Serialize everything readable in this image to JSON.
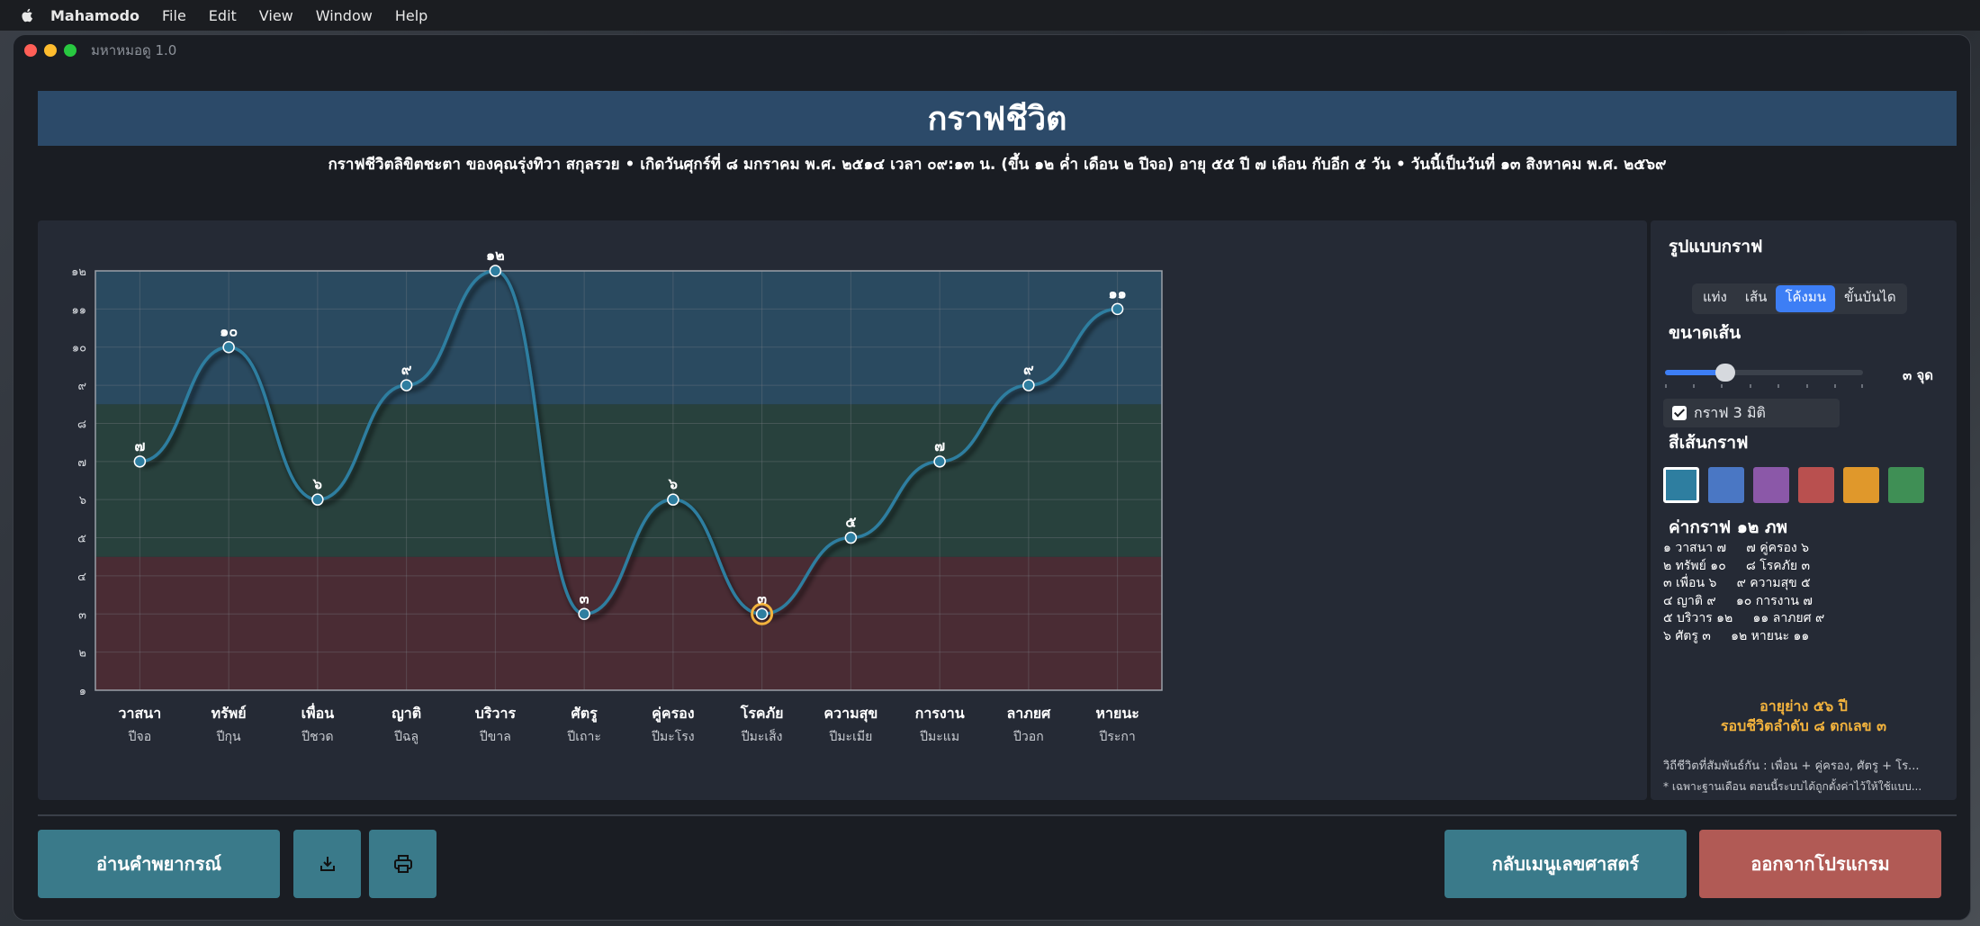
{
  "menubar": {
    "app": "Mahamodo",
    "items": [
      "File",
      "Edit",
      "View",
      "Window",
      "Help"
    ]
  },
  "window": {
    "title": "มหาหมอดู 1.0"
  },
  "header": {
    "title": "กราฟชีวิต",
    "subtitle": "กราฟชีวิตลิขิตชะตา ของคุณรุ่งทิวา สกุลรวย  •  เกิดวันศุกร์ที่ ๘ มกราคม พ.ศ. ๒๕๑๔ เวลา ๐๙:๑๓ น.  (ขึ้น ๑๒ ค่ำ เดือน ๒ ปีจอ) อายุ ๕๕ ปี ๗ เดือน กับอีก ๕ วัน  •  วันนี้เป็นวันที่ ๑๓ สิงหาคม พ.ศ. ๒๕๖๙"
  },
  "chart_data": {
    "type": "line",
    "style": "smooth",
    "categories": [
      "วาสนา",
      "ทรัพย์",
      "เพื่อน",
      "ญาติ",
      "บริวาร",
      "ศัตรู",
      "คู่ครอง",
      "โรคภัย",
      "ความสุข",
      "การงาน",
      "ลาภยศ",
      "หายนะ"
    ],
    "sublabels": [
      "ปีจอ",
      "ปีกุน",
      "ปีชวด",
      "ปีฉลู",
      "ปีขาล",
      "ปีเถาะ",
      "ปีมะโรง",
      "ปีมะเส็ง",
      "ปีมะเมีย",
      "ปีมะแม",
      "ปีวอก",
      "ปีระกา"
    ],
    "values": [
      7,
      10,
      6,
      9,
      12,
      3,
      6,
      3,
      5,
      7,
      9,
      11
    ],
    "value_labels": [
      "๗",
      "๑๐",
      "๖",
      "๙",
      "๑๒",
      "๓",
      "๖",
      "๓",
      "๕",
      "๗",
      "๙",
      "๑๑"
    ],
    "ylim": [
      1,
      12
    ],
    "y_ticks": [
      "๑",
      "๒",
      "๓",
      "๔",
      "๕",
      "๖",
      "๗",
      "๘",
      "๙",
      "๑๐",
      "๑๑",
      "๑๒"
    ],
    "highlighted_index": 7,
    "grid": true,
    "bands": [
      {
        "from": 1,
        "to": 4.5,
        "color": "#4a2c34"
      },
      {
        "from": 4.5,
        "to": 8.5,
        "color": "#28413d"
      },
      {
        "from": 8.5,
        "to": 12,
        "color": "#2a4a60"
      }
    ],
    "line_color": "#2e7ea0"
  },
  "sidebar": {
    "graph_style_title": "รูปแบบกราฟ",
    "graph_styles": [
      "แท่ง",
      "เส้น",
      "โค้งมน",
      "ขั้นบันได"
    ],
    "graph_style_active": 2,
    "line_width_title": "ขนาดเส้น",
    "line_width_value": "๓ จุด",
    "line_width_level": 0.25,
    "three_d_label": "กราฟ 3 มิติ",
    "three_d_checked": true,
    "line_color_title": "สีเส้นกราฟ",
    "line_colors": [
      "#2e7ea0",
      "#4a77c4",
      "#8b58a8",
      "#b9504f",
      "#e0982b",
      "#3f8f55"
    ],
    "line_color_selected": 0,
    "values_title": "ค่ากราฟ ๑๒ ภพ",
    "values_lines": [
      "๑ วาสนา ๗     ๗ คู่ครอง ๖",
      "๒ ทรัพย์ ๑๐     ๘ โรคภัย ๓",
      "๓ เพื่อน ๖     ๙ ความสุข ๕",
      "๔ ญาติ ๙     ๑๐ การงาน ๗",
      "๕ บริวาร ๑๒     ๑๑ ลาภยศ ๙",
      "๖ ศัตรู ๓     ๑๒ หายนะ ๑๑"
    ],
    "age_line1": "อายุย่าง ๕๖ ปี",
    "age_line2": "รอบชีวิตลำดับ ๘ ตกเลข ๓",
    "relation_note": "วิถีชีวิตที่สัมพันธ์กัน : เพื่อน + คู่ครอง,   ศัตรู + โร...",
    "footnote": "* เฉพาะฐานเดือน ตอนนี้ระบบได้ถูกตั้งค่าไว้ให้ใช้แบบ..."
  },
  "buttons": {
    "read_prediction": "อ่านคำพยากรณ์",
    "back_menu": "กลับเมนูเลขศาสตร์",
    "exit": "ออกจากโปรแกรม"
  }
}
